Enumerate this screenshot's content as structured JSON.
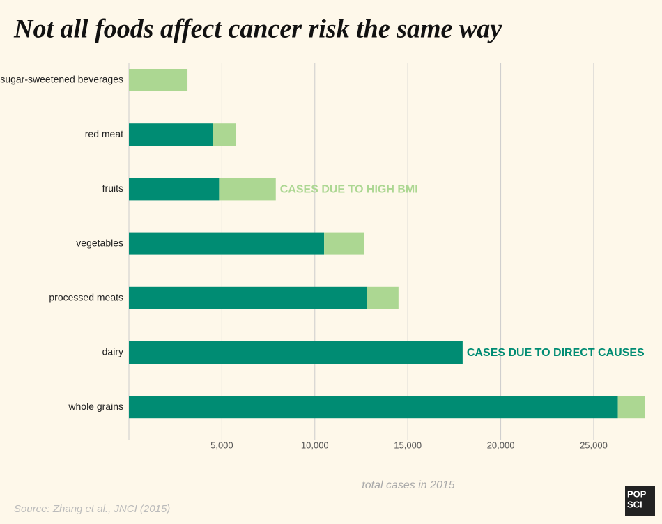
{
  "chart_data": {
    "type": "stacked-bar-horizontal",
    "title": "Not all foods affect cancer risk the same way",
    "categories": [
      "sugar-sweetened beverages",
      "red meat",
      "fruits",
      "vegetables",
      "processed meats",
      "dairy",
      "whole grains"
    ],
    "series": [
      {
        "name": "CASES DUE TO DIRECT CAUSES",
        "color": "#008c73",
        "values": [
          0,
          4500,
          4850,
          10500,
          12800,
          17950,
          26300
        ]
      },
      {
        "name": "CASES DUE TO HIGH BMI",
        "color": "#acd792",
        "values": [
          3150,
          1250,
          3050,
          2150,
          1700,
          0,
          1450
        ]
      }
    ],
    "xlim": [
      0,
      28000
    ],
    "xticks": [
      {
        "value": 5000,
        "label": "5,000"
      },
      {
        "value": 10000,
        "label": "10,000"
      },
      {
        "value": 15000,
        "label": "15,000"
      },
      {
        "value": 20000,
        "label": "20,000"
      },
      {
        "value": 25000,
        "label": "25,000"
      }
    ],
    "xlabel": "total cases in 2015",
    "source": "Source: Zhang et al., JNCI (2015)",
    "logo": [
      "POP",
      "SCI"
    ],
    "grid": true
  }
}
